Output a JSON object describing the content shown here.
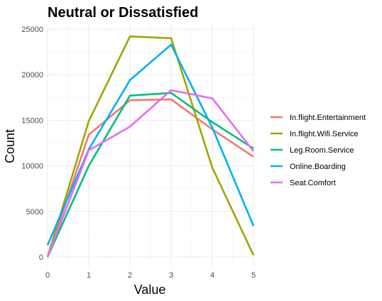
{
  "chart_data": {
    "type": "line",
    "title": "Neutral or Dissatisfied",
    "xlabel": "Value",
    "ylabel": "Count",
    "x": [
      0,
      1,
      2,
      3,
      4,
      5
    ],
    "xlim": [
      0,
      5
    ],
    "ylim": [
      0,
      25000
    ],
    "x_ticks": [
      "0",
      "1",
      "2",
      "3",
      "4",
      "5"
    ],
    "y_ticks": [
      "0",
      "5000",
      "10000",
      "15000",
      "20000",
      "25000"
    ],
    "y_tick_values": [
      0,
      5000,
      10000,
      15000,
      20000,
      25000
    ],
    "grid": true,
    "legend_position": "right",
    "series": [
      {
        "name": "In.flight.Entertainment",
        "color": "#F8766D",
        "values": [
          0,
          13400,
          17200,
          17300,
          14000,
          11000
        ]
      },
      {
        "name": "In.flight.Wifi.Service",
        "color": "#A3A500",
        "values": [
          0,
          14900,
          24200,
          24000,
          9800,
          200
        ]
      },
      {
        "name": "Leg.Room.Service",
        "color": "#00BF7D",
        "values": [
          0,
          10000,
          17700,
          18000,
          14800,
          11900
        ]
      },
      {
        "name": "Online.Boarding",
        "color": "#00B0F6",
        "values": [
          1300,
          11800,
          19400,
          23300,
          14200,
          3400
        ]
      },
      {
        "name": "Seat.Comfort",
        "color": "#E76BF3",
        "values": [
          0,
          11700,
          14300,
          18300,
          17400,
          11600
        ]
      }
    ]
  }
}
